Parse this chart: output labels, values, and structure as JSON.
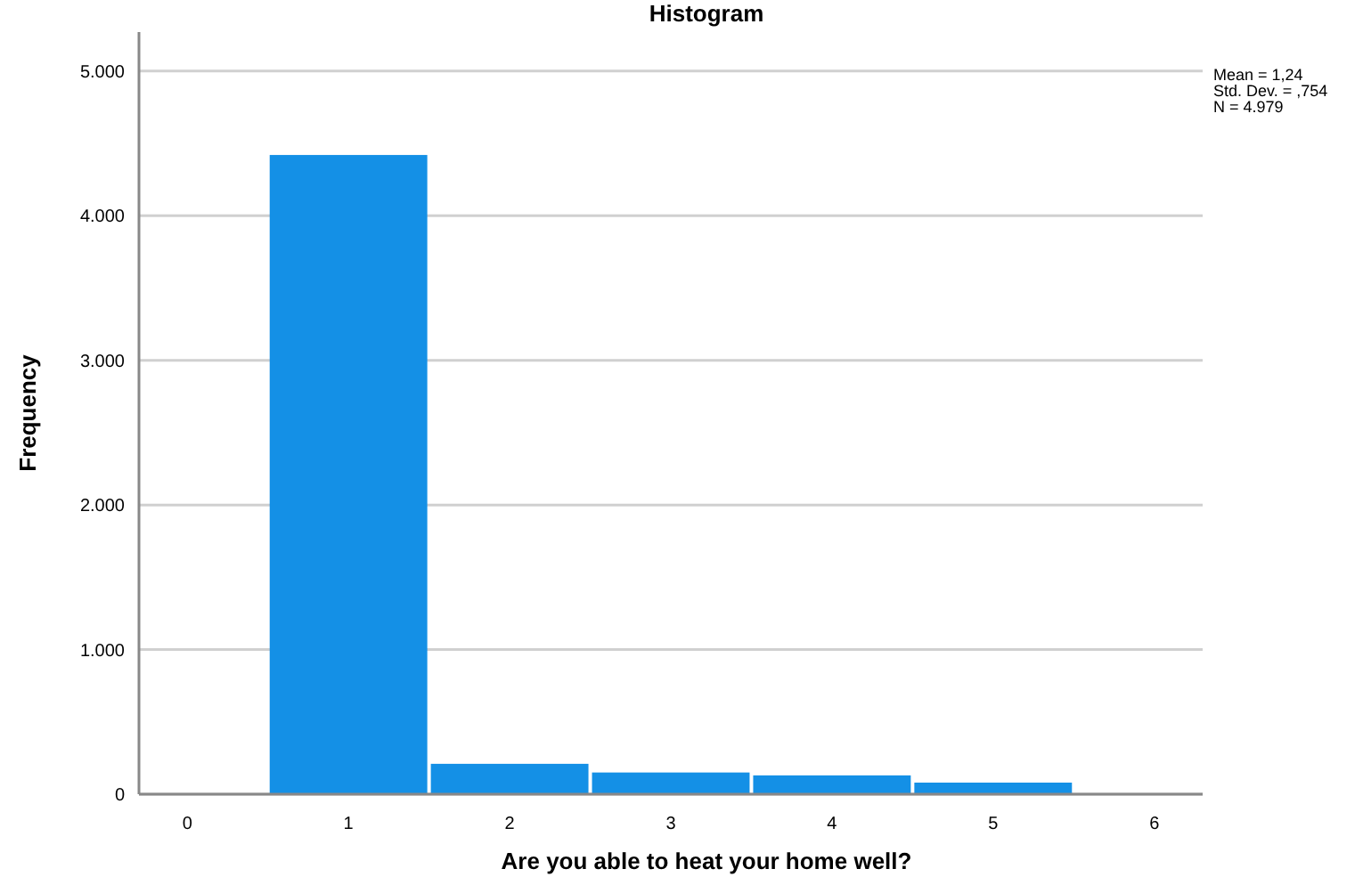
{
  "chart_data": {
    "type": "histogram",
    "title": "Histogram",
    "xlabel": "Are you able to heat your home well?",
    "ylabel": "Frequency",
    "bins": [
      0.5,
      1.5,
      2.5,
      3.5,
      4.5,
      5.5
    ],
    "values": [
      4420,
      210,
      150,
      130,
      80
    ],
    "color": "#1490e6",
    "xlim": [
      -0.3,
      6.3
    ],
    "xticks": [
      0,
      1,
      2,
      3,
      4,
      5,
      6
    ],
    "ylim": [
      0,
      5270
    ],
    "yticks": [
      0,
      {
        "value": 1000,
        "label": "1.000"
      },
      {
        "value": 2000,
        "label": "2.000"
      },
      {
        "value": 3000,
        "label": "3.000"
      },
      {
        "value": 4000,
        "label": "4.000"
      },
      {
        "value": 5000,
        "label": "5.000"
      }
    ],
    "grid": "y",
    "annotations": [
      "Mean = 1,24",
      "Std. Dev. = ,754",
      "N = 4.979"
    ]
  }
}
